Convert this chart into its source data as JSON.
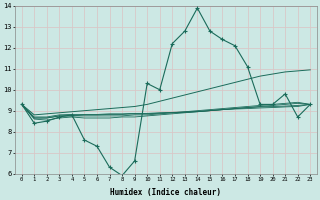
{
  "xlabel": "Humidex (Indice chaleur)",
  "ylabel": "",
  "bg_color": "#cce8e4",
  "grid_color": "#d8c8c8",
  "line_color": "#1a6b5a",
  "xlim": [
    -0.5,
    23.5
  ],
  "ylim": [
    6,
    14
  ],
  "yticks": [
    6,
    7,
    8,
    9,
    10,
    11,
    12,
    13,
    14
  ],
  "xticks": [
    0,
    1,
    2,
    3,
    4,
    5,
    6,
    7,
    8,
    9,
    10,
    11,
    12,
    13,
    14,
    15,
    16,
    17,
    18,
    19,
    20,
    21,
    22,
    23
  ],
  "series_marked": [
    9.3,
    8.4,
    8.5,
    8.7,
    8.8,
    7.6,
    7.3,
    6.3,
    5.9,
    6.6,
    10.3,
    10.0,
    12.2,
    12.8,
    13.9,
    12.8,
    12.4,
    12.1,
    11.1,
    9.3,
    9.3,
    9.8,
    8.7,
    9.3
  ],
  "series_smooth": [
    [
      9.3,
      8.6,
      8.55,
      8.65,
      8.7,
      8.65,
      8.65,
      8.65,
      8.7,
      8.7,
      8.75,
      8.8,
      8.85,
      8.9,
      8.95,
      9.0,
      9.05,
      9.1,
      9.15,
      9.2,
      9.25,
      9.3,
      9.35,
      9.3
    ],
    [
      9.3,
      8.65,
      8.65,
      8.75,
      8.75,
      8.75,
      8.75,
      8.75,
      8.75,
      8.8,
      8.8,
      8.85,
      8.9,
      8.95,
      9.0,
      9.05,
      9.1,
      9.15,
      9.2,
      9.25,
      9.3,
      9.35,
      9.4,
      9.3
    ],
    [
      9.3,
      8.65,
      8.65,
      8.75,
      8.75,
      8.8,
      8.8,
      8.82,
      8.82,
      8.85,
      8.85,
      8.88,
      8.9,
      8.92,
      8.95,
      9.0,
      9.05,
      9.1,
      9.15,
      9.18,
      9.2,
      9.22,
      9.25,
      9.3
    ],
    [
      9.3,
      8.7,
      8.7,
      8.8,
      8.82,
      8.82,
      8.82,
      8.85,
      8.85,
      8.87,
      8.87,
      8.9,
      8.92,
      8.94,
      8.96,
      9.0,
      9.05,
      9.08,
      9.1,
      9.13,
      9.15,
      9.18,
      9.2,
      9.3
    ]
  ],
  "series_diagonal": [
    9.3,
    8.8,
    8.85,
    8.9,
    8.95,
    9.0,
    9.05,
    9.1,
    9.15,
    9.2,
    9.3,
    9.45,
    9.6,
    9.75,
    9.9,
    10.05,
    10.2,
    10.35,
    10.5,
    10.65,
    10.75,
    10.85,
    10.9,
    10.95
  ]
}
